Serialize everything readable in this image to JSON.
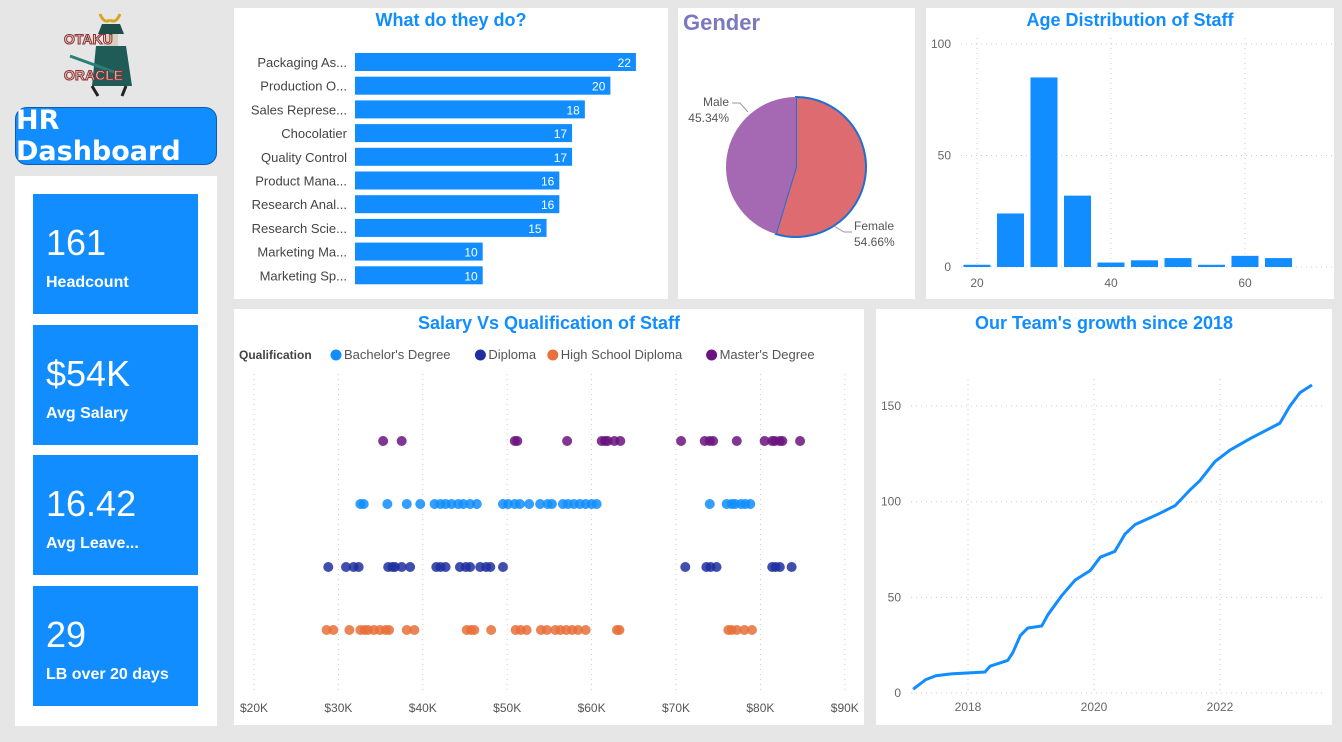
{
  "logo": {
    "line1": "OTAKU",
    "line2": "ORACLE"
  },
  "header": {
    "title": "HR Dashboard"
  },
  "kpis": [
    {
      "value": "161",
      "label": "Headcount"
    },
    {
      "value": "$54K",
      "label": "Avg Salary"
    },
    {
      "value": "16.42",
      "label": "Avg Leave..."
    },
    {
      "value": "29",
      "label": "LB over 20 days"
    }
  ],
  "colors": {
    "accent": "#118dff",
    "female": "#dd6b6f",
    "male": "#a569b4",
    "bachelor": "#118dff",
    "diploma": "#1f2fa0",
    "highschool": "#e8703a",
    "masters": "#6b137f"
  },
  "chart_data": [
    {
      "type": "bar",
      "orientation": "horizontal",
      "title": "What do they do?",
      "categories": [
        "Packaging As...",
        "Production O...",
        "Sales Represe...",
        "Chocolatier",
        "Quality Control",
        "Product Mana...",
        "Research Anal...",
        "Research Scie...",
        "Marketing Ma...",
        "Marketing Sp..."
      ],
      "values": [
        22,
        20,
        18,
        17,
        17,
        16,
        16,
        15,
        10,
        10
      ]
    },
    {
      "type": "pie",
      "title": "Gender",
      "slices": [
        {
          "label": "Female",
          "value": 54.66,
          "text": "54.66%"
        },
        {
          "label": "Male",
          "value": 45.34,
          "text": "45.34%"
        }
      ]
    },
    {
      "type": "bar",
      "title": "Age Distribution of Staff",
      "x": [
        20,
        25,
        30,
        35,
        40,
        45,
        50,
        55,
        60,
        65
      ],
      "values": [
        1,
        24,
        85,
        32,
        2,
        3,
        4,
        1,
        5,
        4
      ],
      "xticks": [
        "20",
        "40",
        "60"
      ],
      "yticks": [
        "0",
        "50",
        "100"
      ],
      "ylim": [
        0,
        100
      ],
      "grid": true
    },
    {
      "type": "scatter",
      "title": "Salary Vs Qualification of Staff",
      "legend_title": "Qualification",
      "legend": "top-left",
      "xticks": [
        "$20K",
        "$30K",
        "$40K",
        "$50K",
        "$60K",
        "$70K",
        "$80K",
        "$90K"
      ],
      "xlim": [
        20,
        90
      ],
      "series": [
        {
          "name": "Bachelor's Degree",
          "row": 2,
          "x": [
            32.6,
            33.0,
            35.8,
            38.1,
            39.7,
            41.4,
            42.1,
            42.7,
            43.4,
            44.2,
            44.8,
            45.6,
            46.4,
            49.5,
            50.1,
            50.9,
            51.5,
            52.6,
            53.9,
            54.8,
            55.3,
            56.6,
            57.2,
            57.9,
            58.6,
            59.3,
            60.0,
            60.6,
            74.0,
            76.0,
            76.6,
            77.0,
            77.7,
            78.2,
            78.8
          ]
        },
        {
          "name": "Diploma",
          "row": 3,
          "x": [
            28.8,
            30.9,
            31.8,
            32.4,
            35.9,
            36.4,
            36.7,
            37.5,
            38.5,
            41.6,
            42.1,
            42.7,
            44.4,
            45.1,
            45.6,
            46.8,
            47.5,
            48.0,
            49.5,
            71.1,
            73.6,
            74.1,
            74.8,
            81.4,
            81.8,
            82.3,
            83.7
          ]
        },
        {
          "name": "High School Diploma",
          "row": 4,
          "x": [
            28.6,
            29.4,
            31.3,
            32.6,
            33.1,
            33.5,
            34.2,
            34.9,
            35.6,
            36.0,
            38.1,
            39.0,
            45.2,
            45.7,
            46.1,
            48.1,
            51.0,
            51.6,
            52.3,
            54.0,
            54.7,
            55.7,
            56.3,
            57.0,
            57.7,
            58.4,
            59.3,
            63.0,
            63.3,
            76.2,
            76.6,
            77.2,
            78.1,
            79.0
          ]
        },
        {
          "name": "Master's Degree",
          "row": 1,
          "x": [
            35.3,
            37.5,
            50.9,
            51.2,
            57.1,
            61.2,
            61.6,
            61.9,
            62.7,
            63.4,
            70.6,
            73.4,
            74.0,
            74.4,
            77.2,
            80.5,
            81.4,
            81.7,
            82.3,
            82.6,
            84.7
          ]
        }
      ]
    },
    {
      "type": "line",
      "title": "Our Team's growth since 2018",
      "xticks": [
        "2018",
        "2020",
        "2022"
      ],
      "yticks": [
        "0",
        "50",
        "100",
        "150"
      ],
      "grid": true,
      "x": [
        2017.13,
        2017.33,
        2017.49,
        2017.73,
        2018.27,
        2018.35,
        2018.63,
        2018.71,
        2018.83,
        2018.95,
        2019.17,
        2019.27,
        2019.49,
        2019.7,
        2019.94,
        2020.1,
        2020.33,
        2020.49,
        2020.65,
        2021.05,
        2021.29,
        2021.52,
        2021.68,
        2021.92,
        2022.16,
        2022.48,
        2022.95,
        2023.11,
        2023.27,
        2023.46
      ],
      "y": [
        2,
        7,
        9,
        10,
        11,
        14,
        17,
        21,
        30,
        34,
        35,
        41,
        51,
        59,
        64,
        71,
        74,
        83,
        88,
        94,
        98,
        106,
        111,
        121,
        127,
        133,
        141,
        150,
        157,
        161
      ]
    }
  ]
}
